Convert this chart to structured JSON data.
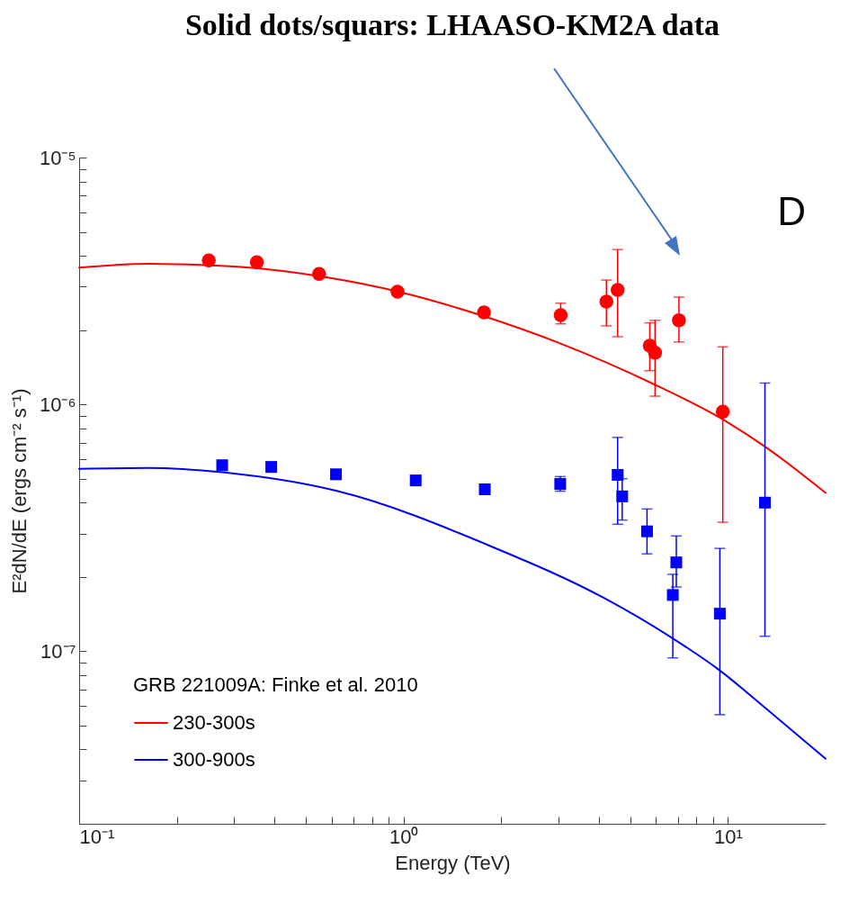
{
  "chart_data": {
    "type": "scatter",
    "title": "Solid dots/squars: LHAASO-KM2A data",
    "xlabel": "Energy (TeV)",
    "ylabel": "E²dN/dE (ergs cm⁻² s⁻¹)",
    "legend_title": "GRB 221009A: Finke et al. 2010",
    "annotations": [
      "D"
    ],
    "log": "xy",
    "grid": false,
    "legend": "bottom left",
    "xlim": [
      0.1,
      20
    ],
    "ylim": [
      2e-08,
      1e-05
    ],
    "xticks": [
      {
        "value": 0.1,
        "label": "10⁻¹"
      },
      {
        "value": 0.2,
        "label": null
      },
      {
        "value": 0.3,
        "label": null
      },
      {
        "value": 0.4,
        "label": null
      },
      {
        "value": 0.5,
        "label": null
      },
      {
        "value": 0.6,
        "label": null
      },
      {
        "value": 0.7,
        "label": null
      },
      {
        "value": 0.8,
        "label": null
      },
      {
        "value": 0.9,
        "label": null
      },
      {
        "value": 1,
        "label": "10⁰"
      },
      {
        "value": 2,
        "label": null
      },
      {
        "value": 3,
        "label": null
      },
      {
        "value": 4,
        "label": null
      },
      {
        "value": 5,
        "label": null
      },
      {
        "value": 6,
        "label": null
      },
      {
        "value": 7,
        "label": null
      },
      {
        "value": 8,
        "label": null
      },
      {
        "value": 9,
        "label": null
      },
      {
        "value": 10,
        "label": "10¹"
      }
    ],
    "yticks": [
      {
        "value": 2e-08,
        "label": null
      },
      {
        "value": 3e-08,
        "label": null
      },
      {
        "value": 4e-08,
        "label": null
      },
      {
        "value": 5e-08,
        "label": null
      },
      {
        "value": 6e-08,
        "label": null
      },
      {
        "value": 7e-08,
        "label": null
      },
      {
        "value": 8e-08,
        "label": null
      },
      {
        "value": 9e-08,
        "label": null
      },
      {
        "value": 1e-07,
        "label": "10⁻⁷"
      },
      {
        "value": 2e-07,
        "label": null
      },
      {
        "value": 3e-07,
        "label": null
      },
      {
        "value": 4e-07,
        "label": null
      },
      {
        "value": 5e-07,
        "label": null
      },
      {
        "value": 6e-07,
        "label": null
      },
      {
        "value": 7e-07,
        "label": null
      },
      {
        "value": 8e-07,
        "label": null
      },
      {
        "value": 9e-07,
        "label": null
      },
      {
        "value": 1e-06,
        "label": "10⁻⁶"
      },
      {
        "value": 2e-06,
        "label": null
      },
      {
        "value": 3e-06,
        "label": null
      },
      {
        "value": 4e-06,
        "label": null
      },
      {
        "value": 5e-06,
        "label": null
      },
      {
        "value": 6e-06,
        "label": null
      },
      {
        "value": 7e-06,
        "label": null
      },
      {
        "value": 8e-06,
        "label": null
      },
      {
        "value": 9e-06,
        "label": null
      },
      {
        "value": 1e-05,
        "label": "10⁻⁵"
      }
    ],
    "series": [
      {
        "name": "230-300s",
        "type": "line",
        "color": "#ff0000",
        "x": [
          0.1,
          0.164,
          0.308,
          0.578,
          0.963,
          1.76,
          3.06,
          5.81,
          9.87,
          13.1,
          20
        ],
        "values": [
          3.58e-06,
          3.71e-06,
          3.61e-06,
          3.27e-06,
          2.86e-06,
          2.28e-06,
          1.76e-06,
          1.22e-06,
          8.53e-07,
          6.7e-07,
          4.38e-07
        ]
      },
      {
        "name": "300-900s",
        "type": "line",
        "color": "#0000ff",
        "x": [
          0.1,
          0.164,
          0.276,
          0.623,
          1.9,
          4.16,
          6.81,
          9.39,
          13.1,
          20
        ],
        "values": [
          5.48e-07,
          5.53e-07,
          5.31e-07,
          4.46e-07,
          2.63e-07,
          1.64e-07,
          1.12e-07,
          8.4e-08,
          5.86e-08,
          3.67e-08
        ]
      },
      {
        "color": "#ff0000",
        "marker": "circle",
        "x": [
          0.251,
          0.353,
          0.549,
          0.958,
          1.77,
          3.05,
          4.22,
          5.96
        ],
        "values": [
          3.83e-06,
          3.77e-06,
          3.38e-06,
          2.86e-06,
          2.36e-06,
          2.3e-06,
          2.61e-06,
          1.62e-06
        ],
        "errors": [
          null,
          null,
          null,
          null,
          null,
          [
            2.12e-06,
            2.57e-06
          ],
          [
            2.08e-06,
            3.19e-06
          ],
          [
            1.08e-06,
            2.19e-06
          ]
        ]
      },
      {
        "color": "#ff0000",
        "marker": "circle",
        "x": [
          4.57,
          5.74,
          7.06,
          9.64
        ],
        "values": [
          2.91e-06,
          1.73e-06,
          2.19e-06,
          9.35e-07
        ],
        "errors": [
          [
            1.88e-06,
            4.24e-06
          ],
          [
            1.37e-06,
            2.14e-06
          ],
          [
            1.79e-06,
            2.72e-06
          ],
          [
            3.33e-07,
            1.71e-06
          ]
        ]
      },
      {
        "color": "#0000ff",
        "marker": "square",
        "x": [
          0.276,
          0.391,
          0.619,
          1.09,
          1.78,
          3.04,
          4.72,
          6.76
        ],
        "values": [
          5.67e-07,
          5.58e-07,
          5.21e-07,
          4.92e-07,
          4.53e-07,
          4.76e-07,
          4.24e-07,
          1.69e-07
        ],
        "errors": [
          null,
          null,
          null,
          null,
          null,
          [
            4.45e-07,
            5.1e-07
          ],
          [
            3.4e-07,
            5e-07
          ],
          [
            9.4e-08,
            2.05e-07
          ]
        ]
      },
      {
        "color": "#0000ff",
        "marker": "square",
        "x": [
          4.57,
          5.63,
          6.93,
          9.44,
          13.0
        ],
        "values": [
          5.18e-07,
          3.06e-07,
          2.29e-07,
          1.42e-07,
          4e-07
        ],
        "errors": [
          [
            3.27e-07,
            7.35e-07
          ],
          [
            2.48e-07,
            3.77e-07
          ],
          [
            1.82e-07,
            2.93e-07
          ],
          [
            5.53e-08,
            2.61e-07
          ],
          [
            1.15e-07,
            1.22e-06
          ]
        ]
      }
    ]
  }
}
